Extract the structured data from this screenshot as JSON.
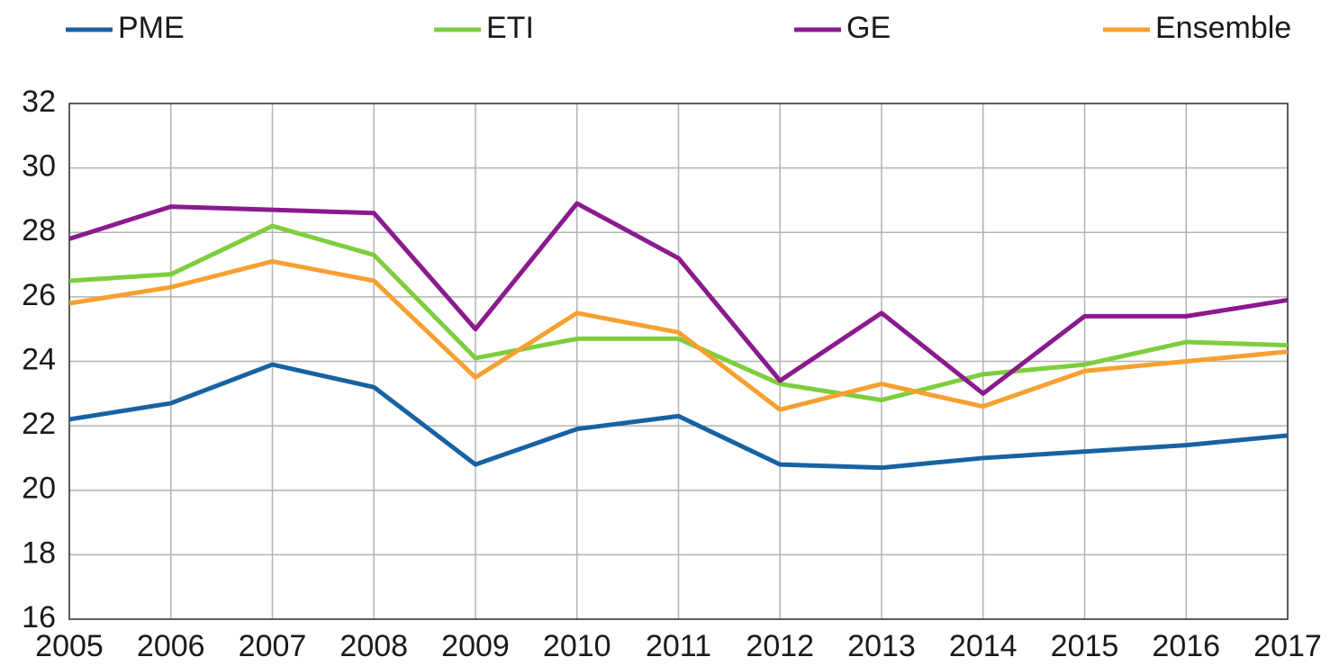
{
  "chart_data": {
    "type": "line",
    "categories": [
      "2005",
      "2006",
      "2007",
      "2008",
      "2009",
      "2010",
      "2011",
      "2012",
      "2013",
      "2014",
      "2015",
      "2016",
      "2017"
    ],
    "series": [
      {
        "name": "PME",
        "color": "#1762a3",
        "values": [
          22.2,
          22.7,
          23.9,
          23.2,
          20.8,
          21.9,
          22.3,
          20.8,
          20.7,
          21.0,
          21.2,
          21.4,
          21.7
        ]
      },
      {
        "name": "ETI",
        "color": "#7dce3c",
        "values": [
          26.5,
          26.7,
          28.2,
          27.3,
          24.1,
          24.7,
          24.7,
          23.3,
          22.8,
          23.6,
          23.9,
          24.6,
          24.5
        ]
      },
      {
        "name": "GE",
        "color": "#8a1a8e",
        "values": [
          27.8,
          28.8,
          28.7,
          28.6,
          25.0,
          28.9,
          27.2,
          23.4,
          25.5,
          23.0,
          25.4,
          25.4,
          25.9
        ]
      },
      {
        "name": "Ensemble",
        "color": "#f7a030",
        "values": [
          25.8,
          26.3,
          27.1,
          26.5,
          23.5,
          25.5,
          24.9,
          22.5,
          23.3,
          22.6,
          23.7,
          24.0,
          24.3
        ]
      }
    ],
    "ylim": [
      16,
      32
    ],
    "yticks": [
      16,
      18,
      20,
      22,
      24,
      26,
      28,
      30,
      32
    ],
    "grid": true,
    "legend": "top"
  }
}
